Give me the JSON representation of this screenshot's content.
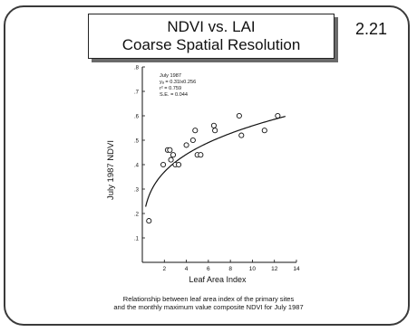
{
  "slide": {
    "title_line1": "NDVI vs. LAI",
    "title_line2": "Coarse Spatial Resolution",
    "number": "2.21",
    "caption_line1": "Relationship between leaf area index of the primary sites",
    "caption_line2": "and the monthly maximum value composite NDVI for July 1987"
  },
  "chart_data": {
    "type": "scatter",
    "xlabel": "Leaf Area Index",
    "ylabel": "July 1987 NDVI",
    "xlim": [
      0,
      14
    ],
    "ylim": [
      0,
      0.8
    ],
    "x_ticks": [
      2,
      4,
      6,
      8,
      10,
      12,
      14
    ],
    "y_ticks": [
      ".1",
      ".2",
      ".3",
      ".4",
      ".5",
      ".6",
      ".7",
      ".8"
    ],
    "annotation": [
      "July 1987",
      "yₐ = 0.31lx0.256",
      "r² = 0.759",
      "S.E. = 0.044"
    ],
    "points": [
      {
        "x": 0.6,
        "y": 0.17
      },
      {
        "x": 1.9,
        "y": 0.4
      },
      {
        "x": 2.3,
        "y": 0.46
      },
      {
        "x": 2.5,
        "y": 0.46
      },
      {
        "x": 2.6,
        "y": 0.42
      },
      {
        "x": 2.8,
        "y": 0.44
      },
      {
        "x": 3.0,
        "y": 0.4
      },
      {
        "x": 3.3,
        "y": 0.4
      },
      {
        "x": 4.0,
        "y": 0.48
      },
      {
        "x": 4.6,
        "y": 0.5
      },
      {
        "x": 4.8,
        "y": 0.54
      },
      {
        "x": 5.0,
        "y": 0.44
      },
      {
        "x": 5.3,
        "y": 0.44
      },
      {
        "x": 6.5,
        "y": 0.56
      },
      {
        "x": 6.6,
        "y": 0.54
      },
      {
        "x": 8.8,
        "y": 0.6
      },
      {
        "x": 9.0,
        "y": 0.52
      },
      {
        "x": 11.1,
        "y": 0.54
      },
      {
        "x": 12.3,
        "y": 0.6
      }
    ],
    "fit": {
      "a": 0.31,
      "b": 0.256
    }
  }
}
